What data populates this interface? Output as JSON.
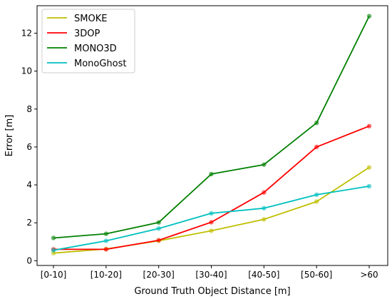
{
  "chart_data": {
    "type": "line",
    "title": "",
    "xlabel": "Ground Truth Object Distance [m]",
    "ylabel": "Error [m]",
    "categories": [
      "[0-10]",
      "[10-20]",
      "[20-30]",
      "[30-40]",
      "[40-50]",
      "[50-60]",
      ">60"
    ],
    "yticks": [
      0,
      2,
      4,
      6,
      8,
      10,
      12
    ],
    "ylim": [
      -0.25,
      13.45
    ],
    "grid": false,
    "legend_position": "top-left",
    "series": [
      {
        "name": "SMOKE",
        "color": "#bfbf00",
        "values": [
          0.4,
          0.62,
          1.05,
          1.58,
          2.18,
          3.12,
          4.92
        ]
      },
      {
        "name": "3DOP",
        "color": "#ff0000",
        "values": [
          0.6,
          0.6,
          1.08,
          2.03,
          3.6,
          6.0,
          7.1
        ]
      },
      {
        "name": "MONO3D",
        "color": "#008000",
        "values": [
          1.2,
          1.42,
          2.02,
          4.57,
          5.07,
          7.27,
          12.9
        ]
      },
      {
        "name": "MonoGhost",
        "color": "#00bfbf",
        "values": [
          0.55,
          1.05,
          1.7,
          2.5,
          2.77,
          3.48,
          3.93
        ]
      }
    ]
  }
}
